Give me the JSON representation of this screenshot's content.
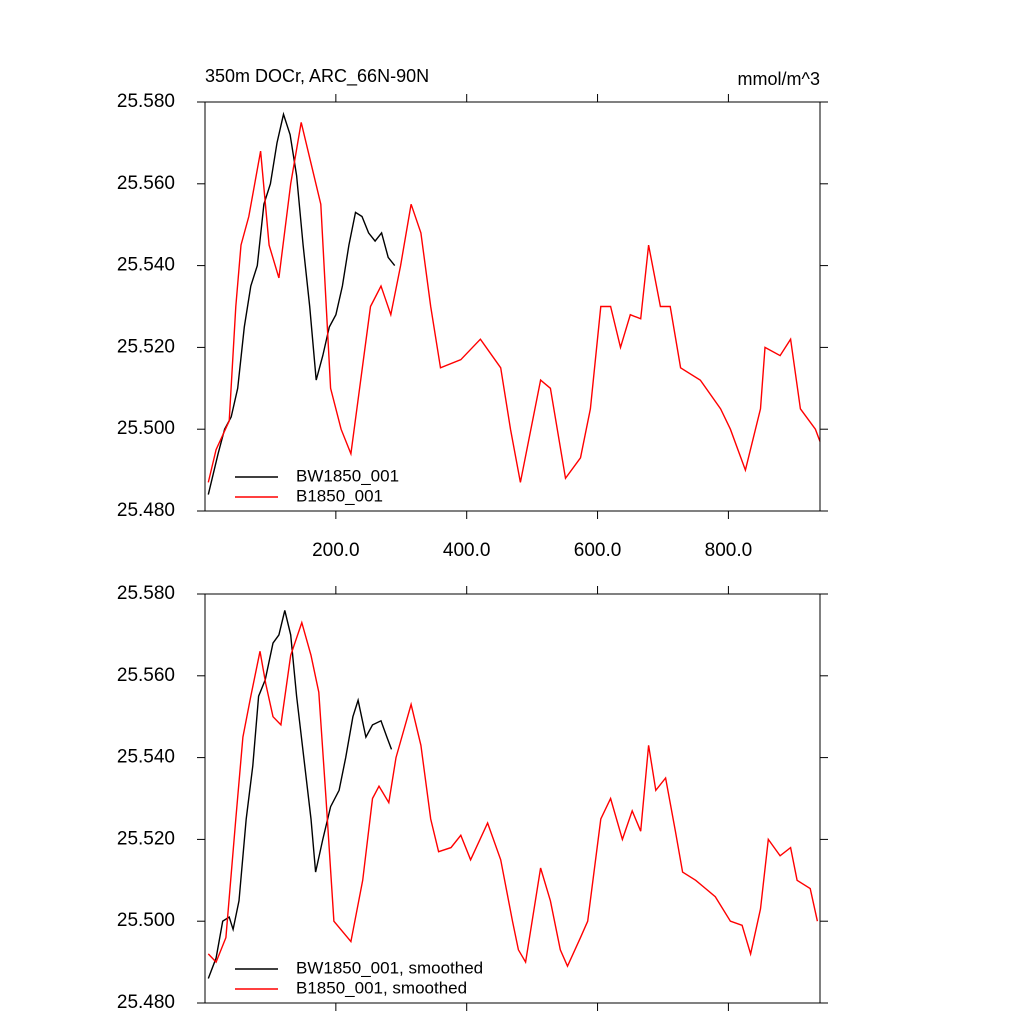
{
  "chart_data": [
    {
      "type": "line",
      "title": "350m DOCr, ARC_66N-90N",
      "units": "mmol/m^3",
      "xlim": [
        0,
        940
      ],
      "ylim": [
        25.48,
        25.58
      ],
      "xticks": [
        {
          "value": 200,
          "label": "200.0"
        },
        {
          "value": 400,
          "label": "400.0"
        },
        {
          "value": 600,
          "label": "600.0"
        },
        {
          "value": 800,
          "label": "800.0"
        }
      ],
      "yticks": [
        {
          "value": 25.48,
          "label": "25.480"
        },
        {
          "value": 25.5,
          "label": "25.500"
        },
        {
          "value": 25.52,
          "label": "25.520"
        },
        {
          "value": 25.54,
          "label": "25.540"
        },
        {
          "value": 25.56,
          "label": "25.560"
        },
        {
          "value": 25.58,
          "label": "25.580"
        }
      ],
      "xtick_labels": true,
      "legend": "lower left",
      "series": [
        {
          "name": "BW1850_001",
          "color": "#000000",
          "x": [
            5,
            20,
            30,
            40,
            50,
            60,
            70,
            80,
            90,
            100,
            110,
            120,
            130,
            140,
            150,
            160,
            170,
            180,
            190,
            200,
            210,
            220,
            230,
            240,
            250,
            260,
            270,
            280,
            290
          ],
          "values": [
            25.484,
            25.494,
            25.5,
            25.503,
            25.51,
            25.525,
            25.535,
            25.54,
            25.555,
            25.56,
            25.57,
            25.577,
            25.572,
            25.562,
            25.545,
            25.53,
            25.512,
            25.518,
            25.525,
            25.528,
            25.535,
            25.545,
            25.553,
            25.552,
            25.548,
            25.546,
            25.548,
            25.542,
            25.54
          ]
        },
        {
          "name": "B1850_001",
          "color": "#ff0000",
          "x": [
            5,
            17,
            37,
            47,
            55,
            67,
            85,
            98,
            113,
            131,
            147,
            162,
            177,
            192,
            208,
            223,
            238,
            253,
            269,
            284,
            299,
            315,
            330,
            345,
            360,
            391,
            421,
            452,
            467,
            482,
            513,
            528,
            551,
            574,
            589,
            605,
            620,
            635,
            650,
            666,
            678,
            696,
            711,
            727,
            757,
            788,
            803,
            826,
            849,
            856,
            879,
            895,
            910,
            933,
            940
          ],
          "values": [
            25.487,
            25.495,
            25.502,
            25.53,
            25.545,
            25.552,
            25.568,
            25.545,
            25.537,
            25.56,
            25.575,
            25.565,
            25.555,
            25.51,
            25.5,
            25.494,
            25.512,
            25.53,
            25.535,
            25.528,
            25.54,
            25.555,
            25.548,
            25.53,
            25.515,
            25.517,
            25.522,
            25.515,
            25.5,
            25.487,
            25.512,
            25.51,
            25.488,
            25.493,
            25.505,
            25.53,
            25.53,
            25.52,
            25.528,
            25.527,
            25.545,
            25.53,
            25.53,
            25.515,
            25.512,
            25.505,
            25.5,
            25.49,
            25.505,
            25.52,
            25.518,
            25.522,
            25.505,
            25.5,
            25.497
          ]
        }
      ]
    },
    {
      "type": "line",
      "xlim": [
        0,
        940
      ],
      "ylim": [
        25.48,
        25.58
      ],
      "xticks": [
        200,
        400,
        600,
        800
      ],
      "yticks": [
        {
          "value": 25.48,
          "label": "25.480"
        },
        {
          "value": 25.5,
          "label": "25.500"
        },
        {
          "value": 25.52,
          "label": "25.520"
        },
        {
          "value": 25.54,
          "label": "25.540"
        },
        {
          "value": 25.56,
          "label": "25.560"
        },
        {
          "value": 25.58,
          "label": "25.580"
        }
      ],
      "xtick_labels": false,
      "legend": "lower left",
      "series": [
        {
          "name": "BW1850_001, smoothed",
          "color": "#000000",
          "x": [
            5,
            17,
            27,
            37,
            43,
            52,
            63,
            73,
            82,
            92,
            104,
            113,
            122,
            131,
            140,
            151,
            162,
            169,
            180,
            192,
            205,
            215,
            226,
            234,
            246,
            256,
            269,
            278,
            285
          ],
          "values": [
            25.486,
            25.491,
            25.5,
            25.501,
            25.498,
            25.505,
            25.525,
            25.538,
            25.555,
            25.559,
            25.568,
            25.57,
            25.576,
            25.57,
            25.555,
            25.54,
            25.525,
            25.512,
            25.52,
            25.528,
            25.532,
            25.54,
            25.55,
            25.554,
            25.545,
            25.548,
            25.549,
            25.545,
            25.542
          ]
        },
        {
          "name": "B1850_001, smoothed",
          "color": "#ff0000",
          "x": [
            5,
            17,
            32,
            47,
            58,
            70,
            84,
            93,
            104,
            116,
            131,
            148,
            162,
            174,
            185,
            197,
            223,
            241,
            256,
            266,
            281,
            292,
            315,
            330,
            345,
            357,
            376,
            391,
            406,
            432,
            452,
            470,
            479,
            490,
            513,
            528,
            543,
            554,
            574,
            585,
            605,
            620,
            638,
            653,
            666,
            678,
            689,
            704,
            719,
            730,
            750,
            765,
            780,
            803,
            821,
            834,
            849,
            861,
            879,
            895,
            905,
            925,
            936
          ],
          "values": [
            25.492,
            25.49,
            25.496,
            25.525,
            25.545,
            25.555,
            25.566,
            25.558,
            25.55,
            25.548,
            25.565,
            25.573,
            25.565,
            25.556,
            25.53,
            25.5,
            25.495,
            25.51,
            25.53,
            25.533,
            25.529,
            25.54,
            25.553,
            25.543,
            25.525,
            25.517,
            25.518,
            25.521,
            25.515,
            25.524,
            25.515,
            25.5,
            25.493,
            25.49,
            25.513,
            25.505,
            25.493,
            25.489,
            25.496,
            25.5,
            25.525,
            25.53,
            25.52,
            25.527,
            25.522,
            25.543,
            25.532,
            25.535,
            25.522,
            25.512,
            25.51,
            25.508,
            25.506,
            25.5,
            25.499,
            25.492,
            25.503,
            25.52,
            25.516,
            25.518,
            25.51,
            25.508,
            25.5
          ]
        }
      ]
    }
  ]
}
